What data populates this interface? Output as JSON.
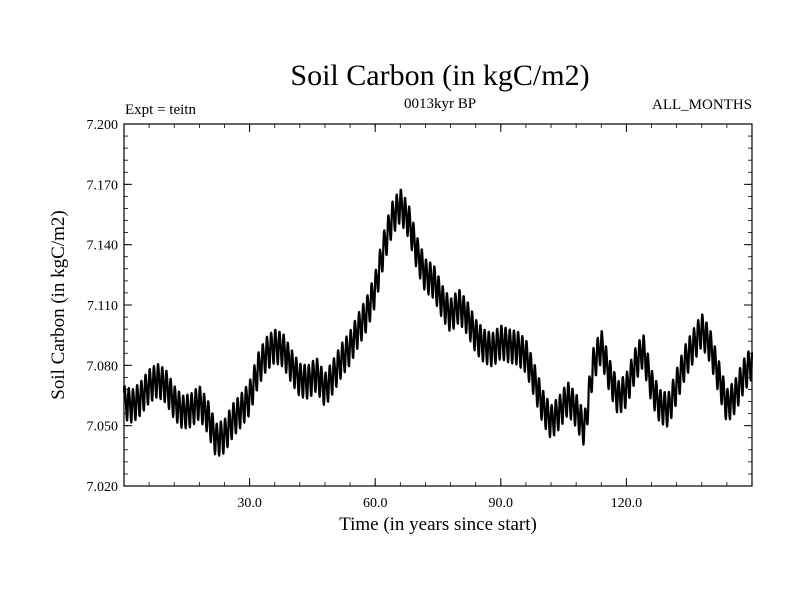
{
  "chart_data": {
    "type": "line",
    "title": "Soil Carbon (in kgC/m2)",
    "subtitle": "0013kyr BP",
    "left_label": "Expt = teitn",
    "right_label": "ALL_MONTHS",
    "xlabel": "Time (in years since start)",
    "ylabel": "Soil Carbon (in kgC/m2)",
    "xlim": [
      0,
      150
    ],
    "ylim": [
      7.02,
      7.2
    ],
    "xticks": [
      30,
      60,
      90,
      120
    ],
    "xtick_labels": [
      "30.0",
      "60.0",
      "90.0",
      "120.0"
    ],
    "yticks": [
      7.02,
      7.05,
      7.08,
      7.11,
      7.14,
      7.17,
      7.2
    ],
    "ytick_labels": [
      "7.020",
      "7.050",
      "7.080",
      "7.110",
      "7.140",
      "7.170",
      "7.200"
    ],
    "seasonal_amplitude": 0.008,
    "series": [
      {
        "name": "Soil Carbon",
        "color": "#000000",
        "trend": [
          [
            0,
            7.062
          ],
          [
            2,
            7.06
          ],
          [
            4,
            7.064
          ],
          [
            6,
            7.07
          ],
          [
            8,
            7.073
          ],
          [
            10,
            7.07
          ],
          [
            12,
            7.062
          ],
          [
            14,
            7.057
          ],
          [
            16,
            7.058
          ],
          [
            18,
            7.062
          ],
          [
            20,
            7.055
          ],
          [
            22,
            7.043
          ],
          [
            24,
            7.045
          ],
          [
            26,
            7.053
          ],
          [
            28,
            7.058
          ],
          [
            30,
            7.064
          ],
          [
            32,
            7.078
          ],
          [
            34,
            7.086
          ],
          [
            36,
            7.09
          ],
          [
            38,
            7.088
          ],
          [
            40,
            7.08
          ],
          [
            42,
            7.073
          ],
          [
            44,
            7.072
          ],
          [
            46,
            7.076
          ],
          [
            48,
            7.068
          ],
          [
            50,
            7.075
          ],
          [
            52,
            7.083
          ],
          [
            54,
            7.089
          ],
          [
            56,
            7.098
          ],
          [
            58,
            7.106
          ],
          [
            60,
            7.118
          ],
          [
            62,
            7.138
          ],
          [
            64,
            7.153
          ],
          [
            66,
            7.16
          ],
          [
            68,
            7.152
          ],
          [
            70,
            7.136
          ],
          [
            72,
            7.125
          ],
          [
            74,
            7.122
          ],
          [
            76,
            7.112
          ],
          [
            78,
            7.105
          ],
          [
            80,
            7.11
          ],
          [
            82,
            7.104
          ],
          [
            84,
            7.095
          ],
          [
            86,
            7.09
          ],
          [
            88,
            7.088
          ],
          [
            90,
            7.092
          ],
          [
            92,
            7.09
          ],
          [
            94,
            7.089
          ],
          [
            96,
            7.085
          ],
          [
            98,
            7.073
          ],
          [
            100,
            7.06
          ],
          [
            102,
            7.052
          ],
          [
            104,
            7.057
          ],
          [
            106,
            7.064
          ],
          [
            108,
            7.058
          ],
          [
            110,
            7.048
          ],
          [
            112,
            7.08
          ],
          [
            114,
            7.09
          ],
          [
            116,
            7.075
          ],
          [
            118,
            7.064
          ],
          [
            120,
            7.068
          ],
          [
            122,
            7.08
          ],
          [
            124,
            7.088
          ],
          [
            126,
            7.07
          ],
          [
            128,
            7.06
          ],
          [
            130,
            7.058
          ],
          [
            132,
            7.07
          ],
          [
            134,
            7.082
          ],
          [
            136,
            7.09
          ],
          [
            138,
            7.098
          ],
          [
            140,
            7.09
          ],
          [
            142,
            7.075
          ],
          [
            144,
            7.06
          ],
          [
            146,
            7.065
          ],
          [
            148,
            7.075
          ],
          [
            150,
            7.082
          ]
        ]
      }
    ]
  }
}
